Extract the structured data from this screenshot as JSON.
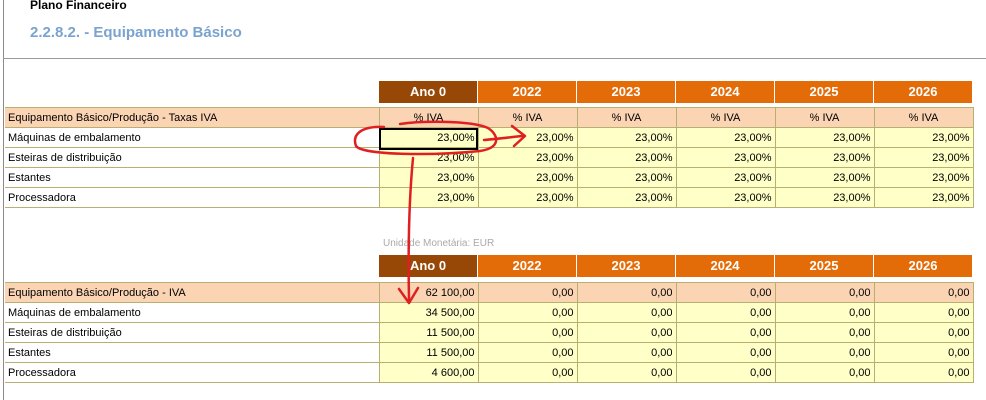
{
  "doc_title": "Plano Financeiro",
  "section_title": "2.2.8.2. - Equipamento Básico",
  "unit_label": "Unidade Monetária: EUR",
  "years": [
    "Ano 0",
    "2022",
    "2023",
    "2024",
    "2025",
    "2026"
  ],
  "table1": {
    "header_label": "Equipamento Básico/Produção - Taxas IVA",
    "header_cols": [
      "% IVA",
      "% IVA",
      "% IVA",
      "% IVA",
      "% IVA",
      "% IVA"
    ],
    "rows": [
      {
        "label": "Máquinas de embalamento",
        "values": [
          "23,00%",
          "23,00%",
          "23,00%",
          "23,00%",
          "23,00%",
          "23,00%"
        ]
      },
      {
        "label": "Esteiras de distribuição",
        "values": [
          "23,00%",
          "23,00%",
          "23,00%",
          "23,00%",
          "23,00%",
          "23,00%"
        ]
      },
      {
        "label": "Estantes",
        "values": [
          "23,00%",
          "23,00%",
          "23,00%",
          "23,00%",
          "23,00%",
          "23,00%"
        ]
      },
      {
        "label": "Processadora",
        "values": [
          "23,00%",
          "23,00%",
          "23,00%",
          "23,00%",
          "23,00%",
          "23,00%"
        ]
      }
    ]
  },
  "table2": {
    "header_label": "Equipamento Básico/Produção - IVA",
    "header_cols": [
      "62 100,00",
      "0,00",
      "0,00",
      "0,00",
      "0,00",
      "0,00"
    ],
    "rows": [
      {
        "label": "Máquinas de embalamento",
        "values": [
          "34 500,00",
          "0,00",
          "0,00",
          "0,00",
          "0,00",
          "0,00"
        ]
      },
      {
        "label": "Esteiras de distribuição",
        "values": [
          "11 500,00",
          "0,00",
          "0,00",
          "0,00",
          "0,00",
          "0,00"
        ]
      },
      {
        "label": "Estantes",
        "values": [
          "11 500,00",
          "0,00",
          "0,00",
          "0,00",
          "0,00",
          "0,00"
        ]
      },
      {
        "label": "Processadora",
        "values": [
          "4 600,00",
          "0,00",
          "0,00",
          "0,00",
          "0,00",
          "0,00"
        ]
      }
    ]
  },
  "colors": {
    "header_orange": "#e36c09",
    "header_brown": "#974706",
    "subhead_peach": "#fbd4b4",
    "cell_yellow": "#ffffc8",
    "annotation_red": "#e02020",
    "section_blue": "#7aa3cf"
  }
}
